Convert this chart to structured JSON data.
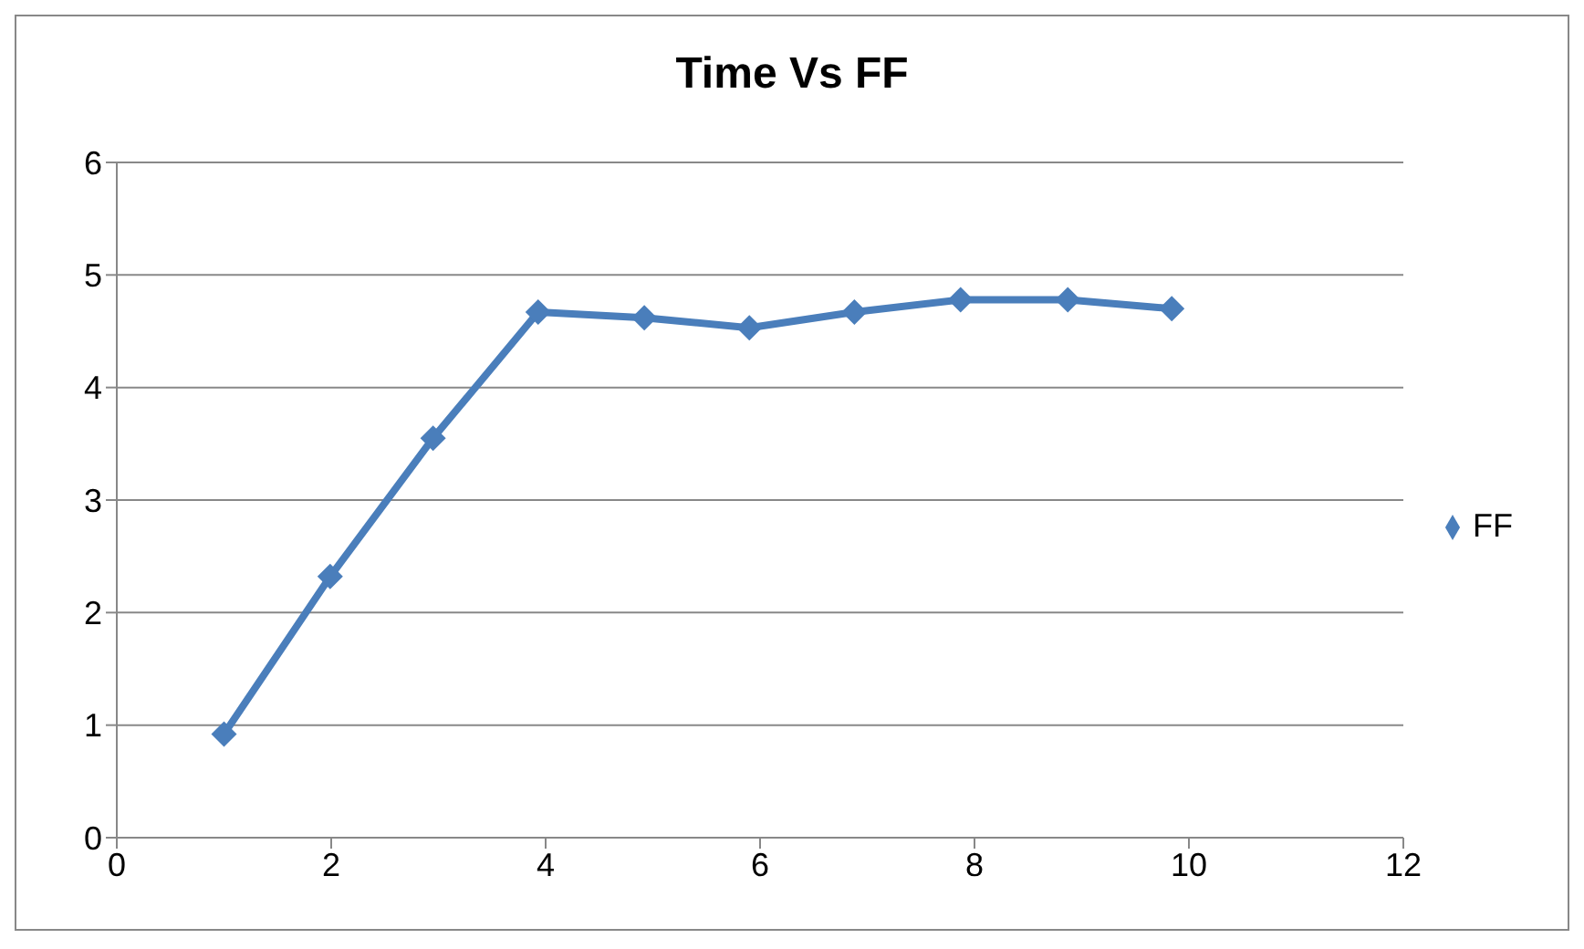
{
  "chart_data": {
    "type": "line",
    "title": "Time Vs FF",
    "x": [
      1,
      1.99,
      2.95,
      3.93,
      4.92,
      5.9,
      6.88,
      7.87,
      8.87,
      9.84
    ],
    "series": [
      {
        "name": "FF",
        "color": "#4a7ebb",
        "values": [
          0.92,
          2.32,
          3.55,
          4.67,
          4.62,
          4.53,
          4.67,
          4.78,
          4.78,
          4.7
        ]
      }
    ],
    "xlim": [
      0,
      12
    ],
    "xticks": [
      0,
      2,
      4,
      6,
      8,
      10,
      12
    ],
    "ylim": [
      0,
      6
    ],
    "yticks": [
      0,
      1,
      2,
      3,
      4,
      5,
      6
    ],
    "grid": "y",
    "legend": "right",
    "marker": "diamond",
    "line_style": "solid"
  }
}
